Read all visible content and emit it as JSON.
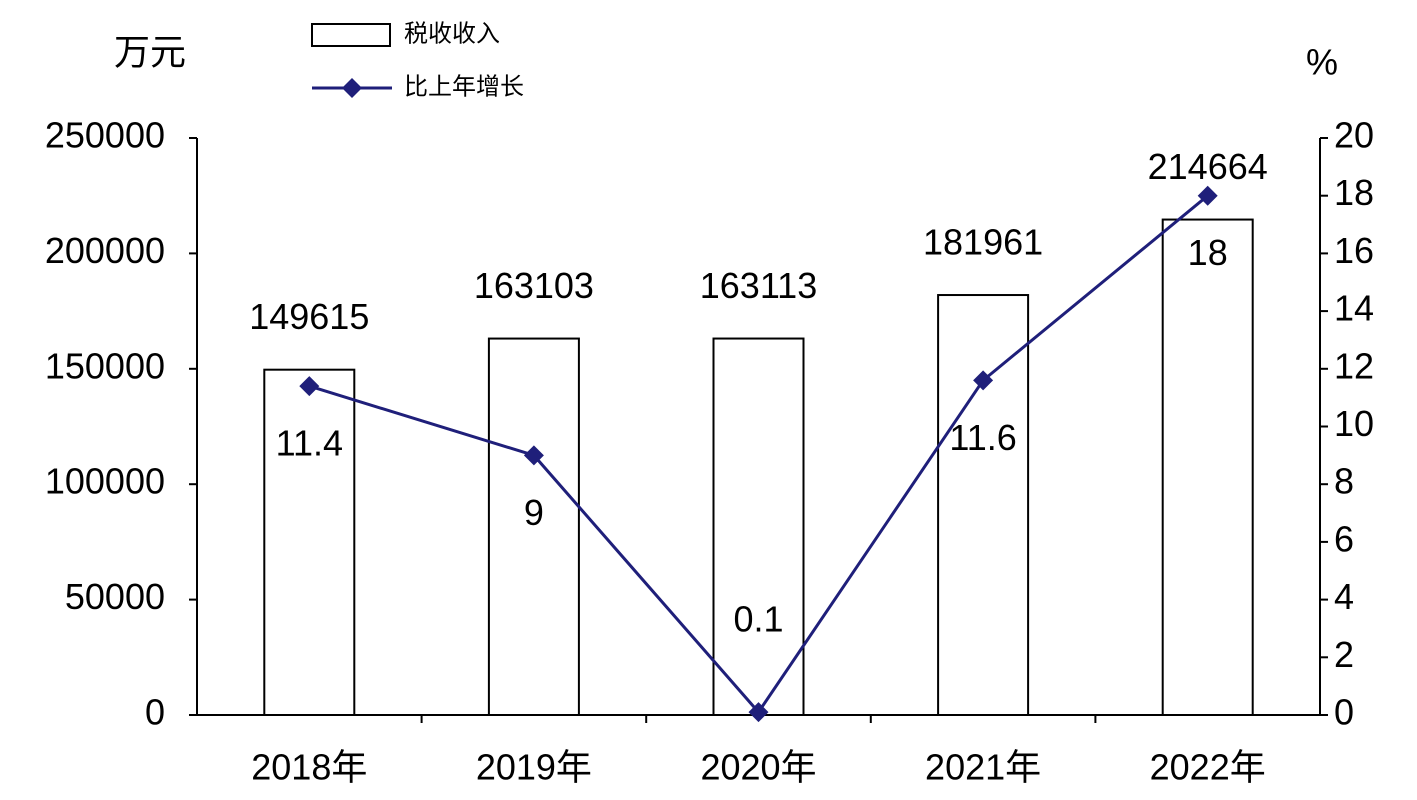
{
  "chart_data": {
    "type": "bar",
    "categories": [
      "2018年",
      "2019年",
      "2020年",
      "2021年",
      "2022年"
    ],
    "y_label": "万元",
    "y2_label": "%",
    "series": [
      {
        "name": "税收收入",
        "type": "bar",
        "color": "#ffffff",
        "values": [
          149615,
          163103,
          163113,
          181961,
          214664
        ]
      },
      {
        "name": "比上年增长",
        "type": "line",
        "axis": "y2",
        "color": "#1f1f7a",
        "values": [
          11.4,
          9,
          0.1,
          11.6,
          18
        ]
      }
    ],
    "ylim": [
      0,
      250000
    ],
    "yticks": [
      0,
      50000,
      100000,
      150000,
      200000,
      250000
    ],
    "y2lim": [
      0,
      20
    ],
    "y2ticks": [
      0,
      2,
      4,
      6,
      8,
      10,
      12,
      14,
      16,
      18,
      20
    ]
  }
}
